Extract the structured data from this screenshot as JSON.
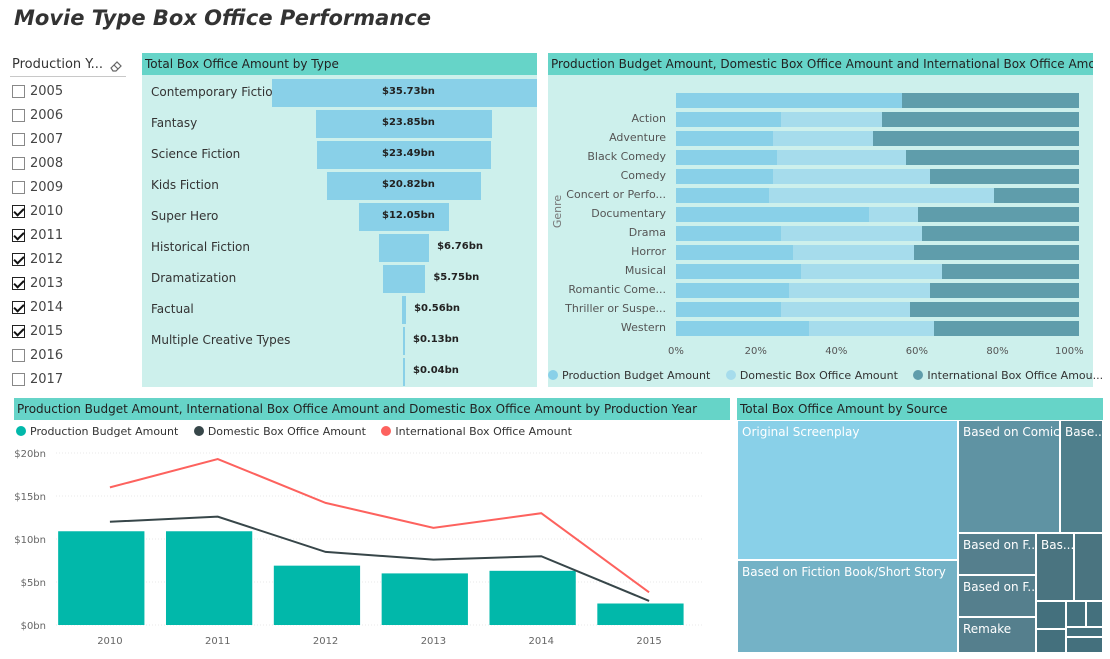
{
  "title": "Movie Type Box Office Performance",
  "slicer": {
    "title": "Production Y...",
    "eraser_icon": "eraser-icon",
    "items": [
      {
        "label": "2005",
        "checked": false
      },
      {
        "label": "2006",
        "checked": false
      },
      {
        "label": "2007",
        "checked": false
      },
      {
        "label": "2008",
        "checked": false
      },
      {
        "label": "2009",
        "checked": false
      },
      {
        "label": "2010",
        "checked": true
      },
      {
        "label": "2011",
        "checked": true
      },
      {
        "label": "2012",
        "checked": true
      },
      {
        "label": "2013",
        "checked": true
      },
      {
        "label": "2014",
        "checked": true
      },
      {
        "label": "2015",
        "checked": true
      },
      {
        "label": "2016",
        "checked": false
      },
      {
        "label": "2017",
        "checked": false
      }
    ]
  },
  "funnel": {
    "title": "Total Box Office Amount by Type",
    "color": "#89d0e8",
    "rows": [
      {
        "label": "Contemporary Fiction",
        "value_text": "$35.73bn"
      },
      {
        "label": "Fantasy",
        "value_text": "$23.85bn"
      },
      {
        "label": "Science Fiction",
        "value_text": "$23.49bn"
      },
      {
        "label": "Kids Fiction",
        "value_text": "$20.82bn"
      },
      {
        "label": "Super Hero",
        "value_text": "$12.05bn"
      },
      {
        "label": "Historical Fiction",
        "value_text": "$6.76bn"
      },
      {
        "label": "Dramatization",
        "value_text": "$5.75bn"
      },
      {
        "label": "Factual",
        "value_text": "$0.56bn"
      },
      {
        "label": "Multiple Creative Types",
        "value_text": "$0.13bn"
      },
      {
        "label": "",
        "value_text": "$0.04bn"
      }
    ]
  },
  "genre_chart": {
    "title": "Production Budget Amount, Domestic Box Office Amount and International Box Office Amount by Ge...",
    "y_axis_title": "Genre",
    "x_ticks": [
      "0%",
      "20%",
      "40%",
      "60%",
      "80%",
      "100%"
    ],
    "legend": [
      "Production Budget Amount",
      "Domestic Box Office Amount",
      "International Box Office Amou..."
    ],
    "colors": [
      "#89d0e8",
      "#a6dcec",
      "#5f9dab"
    ]
  },
  "year_chart": {
    "title": "Production Budget Amount, International Box Office Amount and Domestic Box Office Amount by Production Year",
    "legend": [
      "Production Budget Amount",
      "Domestic Box Office Amount",
      "International Box Office Amount"
    ],
    "colors": {
      "budget": "#01b8aa",
      "domestic": "#374649",
      "international": "#fd625e"
    },
    "y_ticks": [
      "$20bn",
      "$15bn",
      "$10bn",
      "$5bn",
      "$0bn"
    ]
  },
  "treemap": {
    "title": "Total Box Office Amount by Source",
    "tiles": [
      "Original Screenplay",
      "Based on Fiction Book/Short Story",
      "Based on Comic...",
      "Base...",
      "Based on F...",
      "Bas...",
      "Based on F...",
      "Remake"
    ]
  },
  "chart_data": [
    {
      "type": "bar",
      "title": "Total Box Office Amount by Type",
      "categories": [
        "Contemporary Fiction",
        "Fantasy",
        "Science Fiction",
        "Kids Fiction",
        "Super Hero",
        "Historical Fiction",
        "Dramatization",
        "Factual",
        "Multiple Creative Types",
        ""
      ],
      "values": [
        35.73,
        23.85,
        23.49,
        20.82,
        12.05,
        6.76,
        5.75,
        0.56,
        0.13,
        0.04
      ]
    },
    {
      "type": "bar",
      "title": "Production Budget Amount, Domestic Box Office Amount and International Box Office Amount by Ge...",
      "categories": [
        "",
        "Action",
        "Adventure",
        "Black Comedy",
        "Comedy",
        "Concert or Perfo...",
        "Documentary",
        "Drama",
        "Horror",
        "Musical",
        "Romantic Come...",
        "Thriller or Suspe...",
        "Western"
      ],
      "ylabel": "Genre",
      "series": [
        {
          "name": "Production Budget Amount",
          "values": [
            56,
            26,
            24,
            25,
            24,
            23,
            48,
            26,
            29,
            31,
            28,
            26,
            33
          ]
        },
        {
          "name": "Domestic Box Office Amount",
          "values": [
            0,
            25,
            25,
            32,
            39,
            56,
            12,
            35,
            30,
            35,
            35,
            32,
            31
          ]
        },
        {
          "name": "International Box Office Amou...",
          "values": [
            44,
            49,
            51,
            43,
            37,
            21,
            40,
            39,
            41,
            34,
            37,
            42,
            36
          ]
        }
      ]
    },
    {
      "type": "bar",
      "title": "Production Budget Amount, International Box Office Amount and Domestic Box Office Amount by Production Year",
      "categories": [
        "2010",
        "2011",
        "2012",
        "2013",
        "2014",
        "2015"
      ],
      "ylim": [
        0,
        20
      ],
      "series": [
        {
          "name": "Production Budget Amount",
          "values": [
            10.9,
            10.9,
            6.9,
            6.0,
            6.3,
            2.5
          ]
        },
        {
          "name": "Domestic Box Office Amount",
          "values": [
            12.0,
            12.6,
            8.5,
            7.6,
            8.0,
            2.8
          ]
        },
        {
          "name": "International Box Office Amount",
          "values": [
            16.0,
            19.3,
            14.2,
            11.3,
            13.0,
            3.8
          ]
        }
      ]
    }
  ]
}
